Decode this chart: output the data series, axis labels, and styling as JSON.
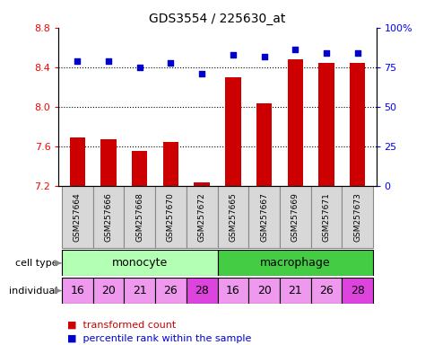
{
  "title": "GDS3554 / 225630_at",
  "samples": [
    "GSM257664",
    "GSM257666",
    "GSM257668",
    "GSM257670",
    "GSM257672",
    "GSM257665",
    "GSM257667",
    "GSM257669",
    "GSM257671",
    "GSM257673"
  ],
  "bar_values": [
    7.69,
    7.67,
    7.56,
    7.65,
    7.24,
    8.3,
    8.04,
    8.48,
    8.44,
    8.44
  ],
  "percentile_values": [
    79,
    79,
    75,
    78,
    71,
    83,
    82,
    86,
    84,
    84
  ],
  "individuals": [
    "16",
    "20",
    "21",
    "26",
    "28",
    "16",
    "20",
    "21",
    "26",
    "28"
  ],
  "monocyte_color": "#b3ffb3",
  "macrophage_color": "#44cc44",
  "individual_base_color": "#ee99ee",
  "individual_highlight_color": "#dd44dd",
  "highlight_indices": [
    4,
    9
  ],
  "bar_color": "#cc0000",
  "dot_color": "#0000cc",
  "sample_box_color": "#d8d8d8",
  "ylim_left": [
    7.2,
    8.8
  ],
  "ylim_right": [
    0,
    100
  ],
  "yticks_left": [
    7.2,
    7.6,
    8.0,
    8.4,
    8.8
  ],
  "yticks_right": [
    0,
    25,
    50,
    75,
    100
  ],
  "grid_values": [
    7.6,
    8.0,
    8.4
  ],
  "bar_bottom": 7.2,
  "legend_labels": [
    "transformed count",
    "percentile rank within the sample"
  ]
}
